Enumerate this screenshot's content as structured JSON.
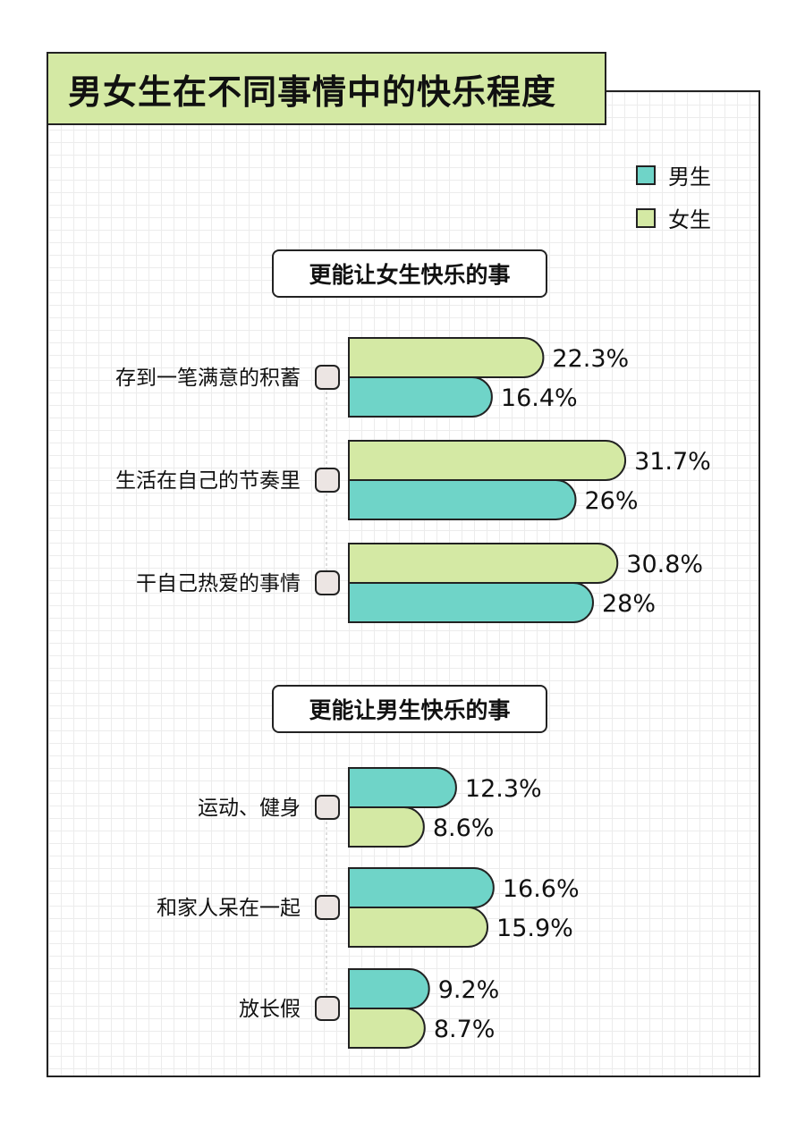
{
  "title": "男女生在不同事情中的快乐程度",
  "legend": [
    {
      "label": "男生",
      "color": "#6fd4c8"
    },
    {
      "label": "女生",
      "color": "#d4e9a4"
    }
  ],
  "colors": {
    "male": "#6fd4c8",
    "female": "#d4e9a4",
    "checkbox": "#ece5e3",
    "border": "#222222"
  },
  "chart_data": {
    "type": "bar",
    "groups": [
      {
        "title": "更能让女生快乐的事",
        "categories": [
          "存到一笔满意的积蓄",
          "生活在自己的节奏里",
          "干自己热爱的事情"
        ],
        "series": [
          {
            "name": "女生",
            "values": [
              22.3,
              31.7,
              30.8
            ],
            "labels": [
              "22.3%",
              "31.7%",
              "30.8%"
            ]
          },
          {
            "name": "男生",
            "values": [
              16.4,
              26,
              28
            ],
            "labels": [
              "16.4%",
              "26%",
              "28%"
            ]
          }
        ]
      },
      {
        "title": "更能让男生快乐的事",
        "categories": [
          "运动、健身",
          "和家人呆在一起",
          "放长假"
        ],
        "series": [
          {
            "name": "男生",
            "values": [
              12.3,
              16.6,
              9.2
            ],
            "labels": [
              "12.3%",
              "16.6%",
              "9.2%"
            ]
          },
          {
            "name": "女生",
            "values": [
              8.6,
              15.9,
              8.7
            ],
            "labels": [
              "8.6%",
              "15.9%",
              "8.7%"
            ]
          }
        ]
      }
    ]
  }
}
